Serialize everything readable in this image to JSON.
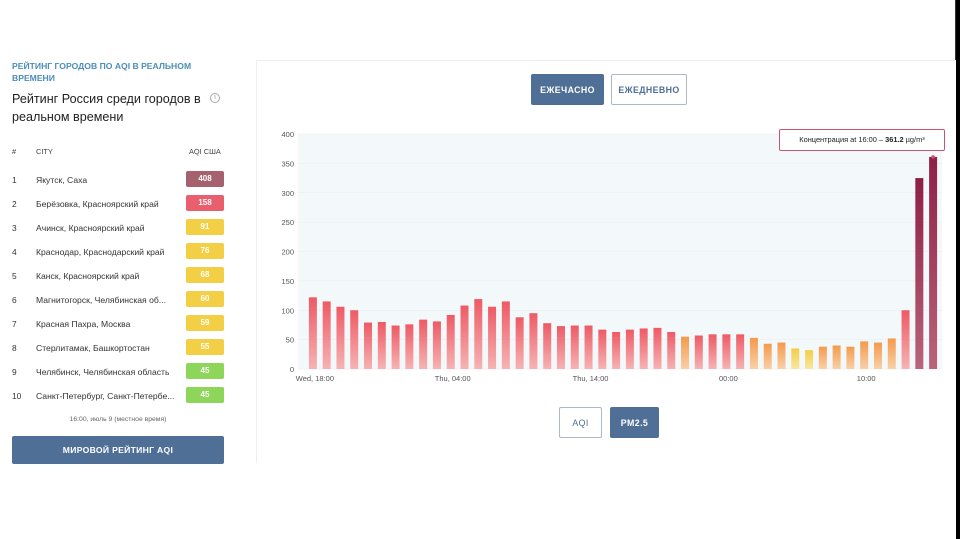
{
  "ranking": {
    "subheading": "РЕЙТИНГ ГОРОДОВ ПО AQI В РЕАЛЬНОМ ВРЕМЕНИ",
    "title": "Рейтинг Россия среди городов в реальном времени",
    "info_icon": "i",
    "columns": {
      "num": "#",
      "city": "CITY",
      "aqi": "AQI США"
    },
    "rows": [
      {
        "rank": "1",
        "city": "Якутск, Саха",
        "aqi": "408",
        "color": "#a6616f"
      },
      {
        "rank": "2",
        "city": "Берёзовка, Красноярский край",
        "aqi": "158",
        "color": "#ea5f6e"
      },
      {
        "rank": "3",
        "city": "Ачинск, Красноярский край",
        "aqi": "91",
        "color": "#f2cf45"
      },
      {
        "rank": "4",
        "city": "Краснодар, Краснодарский край",
        "aqi": "76",
        "color": "#f2cf45"
      },
      {
        "rank": "5",
        "city": "Канск, Красноярский край",
        "aqi": "68",
        "color": "#f2cf45"
      },
      {
        "rank": "6",
        "city": "Магнитогорск, Челябинская об...",
        "aqi": "60",
        "color": "#f2cf45"
      },
      {
        "rank": "7",
        "city": "Красная Пахра, Москва",
        "aqi": "59",
        "color": "#f2cf45"
      },
      {
        "rank": "8",
        "city": "Стерлитамак, Башкортостан",
        "aqi": "55",
        "color": "#f2cf45"
      },
      {
        "rank": "9",
        "city": "Челябинск, Челябинская область",
        "aqi": "45",
        "color": "#8ed65a"
      },
      {
        "rank": "10",
        "city": "Санкт-Петербург, Санкт-Петербе...",
        "aqi": "45",
        "color": "#8ed65a"
      }
    ],
    "updated": "16:00, июль 9 (местное время)",
    "world_button": "МИРОВОЙ РЕЙТИНГ AQI"
  },
  "controls": {
    "hourly": "ЕЖЕЧАСНО",
    "daily": "ЕЖЕДНЕВНО",
    "aqi": "AQI",
    "pm25": "PM2.5"
  },
  "tooltip": {
    "prefix": "Концентрация at 16:00 – ",
    "value": "361.2",
    "unit": " µg/m³"
  },
  "chart_data": {
    "type": "bar",
    "ylim": [
      0,
      400
    ],
    "y_ticks": [
      0,
      50,
      100,
      150,
      200,
      250,
      300,
      350,
      400
    ],
    "x_tick_labels": [
      {
        "index": 0,
        "label": "Wed, 18:00"
      },
      {
        "index": 10,
        "label": "Thu, 04:00"
      },
      {
        "index": 20,
        "label": "Thu, 14:00"
      },
      {
        "index": 30,
        "label": "00:00"
      },
      {
        "index": 40,
        "label": "10:00"
      }
    ],
    "values": [
      122,
      115,
      106,
      100,
      79,
      80,
      74,
      76,
      84,
      81,
      92,
      108,
      119,
      106,
      115,
      88,
      95,
      78,
      73,
      74,
      74,
      67,
      63,
      67,
      69,
      70,
      63,
      55,
      57,
      59,
      59,
      59,
      53,
      43,
      45,
      35,
      32,
      38,
      40,
      38,
      47,
      45,
      52,
      100,
      325,
      361
    ],
    "highlight_index": 45
  }
}
